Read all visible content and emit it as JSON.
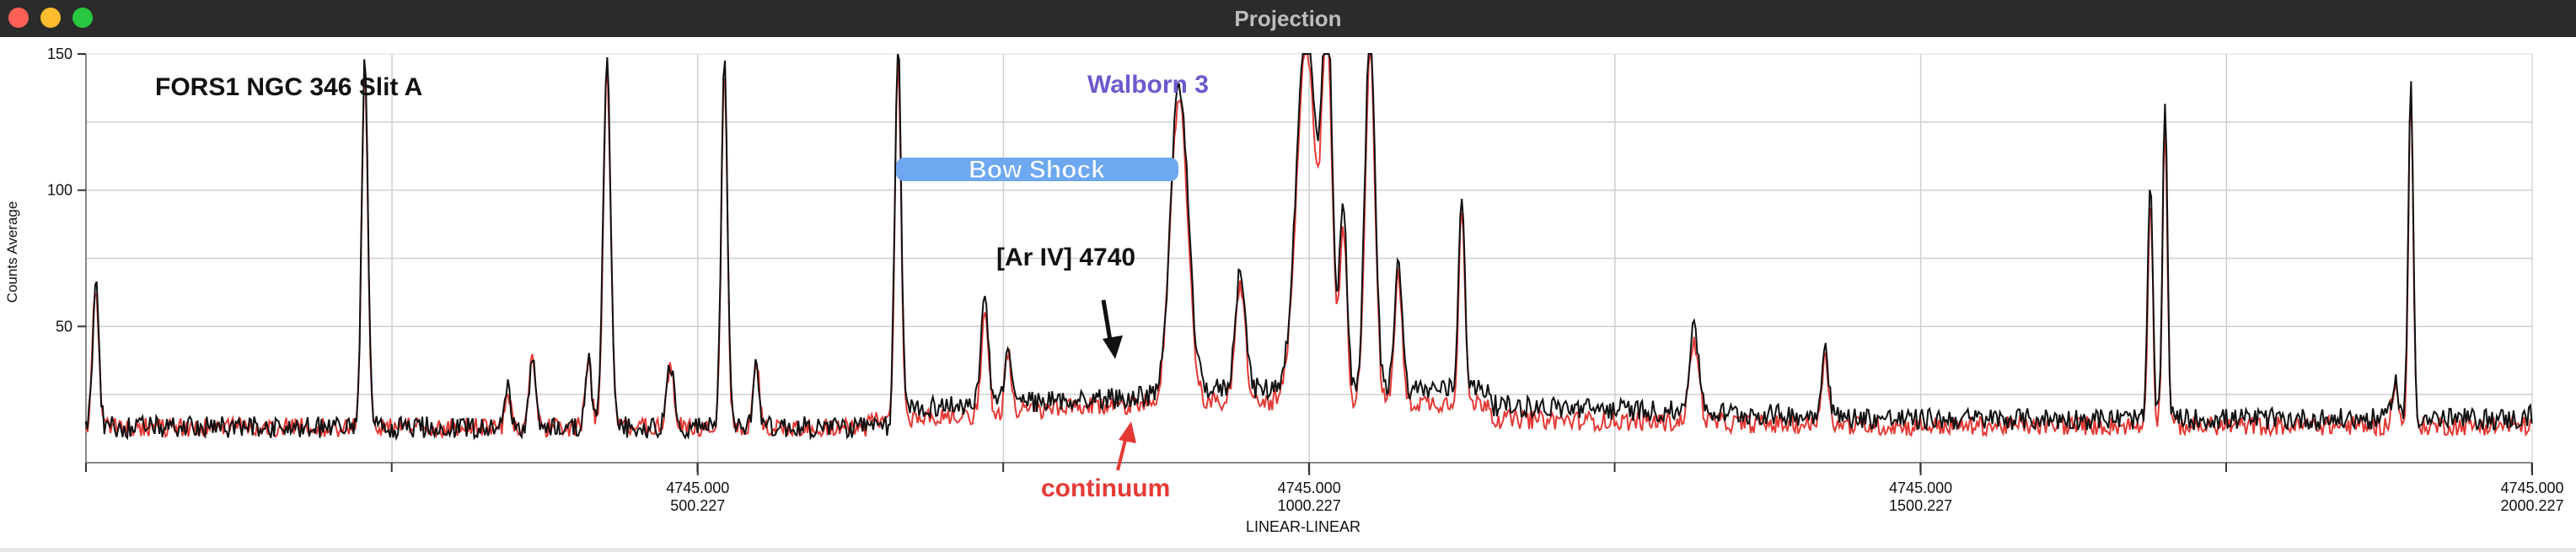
{
  "window": {
    "title": "Projection"
  },
  "chart_data": {
    "type": "line",
    "title": "FORS1 NGC 346 Slit A",
    "ylabel": "Counts Average",
    "xlabel": "LINEAR-LINEAR",
    "xlim": [
      0,
      2000.227
    ],
    "ylim": [
      0,
      150
    ],
    "grid": true,
    "y_ticks": [
      50,
      100,
      150
    ],
    "x_ticks": [
      {
        "value": 500.227,
        "label1": "4745.000",
        "label2": "500.227"
      },
      {
        "value": 1000.227,
        "label1": "4745.000",
        "label2": "1000.227"
      },
      {
        "value": 1500.227,
        "label1": "4745.000",
        "label2": "1500.227"
      },
      {
        "value": 2000.227,
        "label1": "4745.000",
        "label2": "2000.227"
      }
    ],
    "series": [
      {
        "color": "#111111"
      },
      {
        "color": "#e53935"
      }
    ],
    "peaks": [
      [
        8,
        69,
        2.5
      ],
      [
        228,
        150,
        2.5
      ],
      [
        345,
        30,
        2
      ],
      [
        365,
        40,
        2.5
      ],
      [
        411,
        40,
        2.5
      ],
      [
        426,
        150,
        3
      ],
      [
        478,
        38,
        3
      ],
      [
        522,
        150,
        2.5
      ],
      [
        548,
        39,
        2.5
      ],
      [
        664,
        150,
        2.5
      ],
      [
        735,
        52,
        3
      ],
      [
        754,
        38,
        2.5
      ],
      [
        894,
        130,
        7
      ],
      [
        944,
        60,
        4
      ],
      [
        998,
        150,
        8
      ],
      [
        1015,
        150,
        4
      ],
      [
        1028,
        82,
        3
      ],
      [
        1050,
        150,
        4
      ],
      [
        1073,
        64,
        3
      ],
      [
        1125,
        88,
        2.5
      ],
      [
        1315,
        45,
        4
      ],
      [
        1422,
        40,
        3
      ],
      [
        1688,
        103,
        2
      ],
      [
        1700,
        130,
        2
      ],
      [
        1888,
        30,
        2.5
      ],
      [
        1901,
        140,
        2
      ],
      [
        2000,
        17,
        2
      ]
    ],
    "annotations": {
      "walborn": {
        "text": "Walborn 3",
        "color": "#6a5acd"
      },
      "bow_shock": {
        "text": "Bow Shock",
        "color": "#6ea8f0"
      },
      "ariv": {
        "text": "[Ar IV] 4740",
        "color": "#111111"
      },
      "continuum": {
        "text": "continuum",
        "color": "#e53935"
      }
    }
  }
}
